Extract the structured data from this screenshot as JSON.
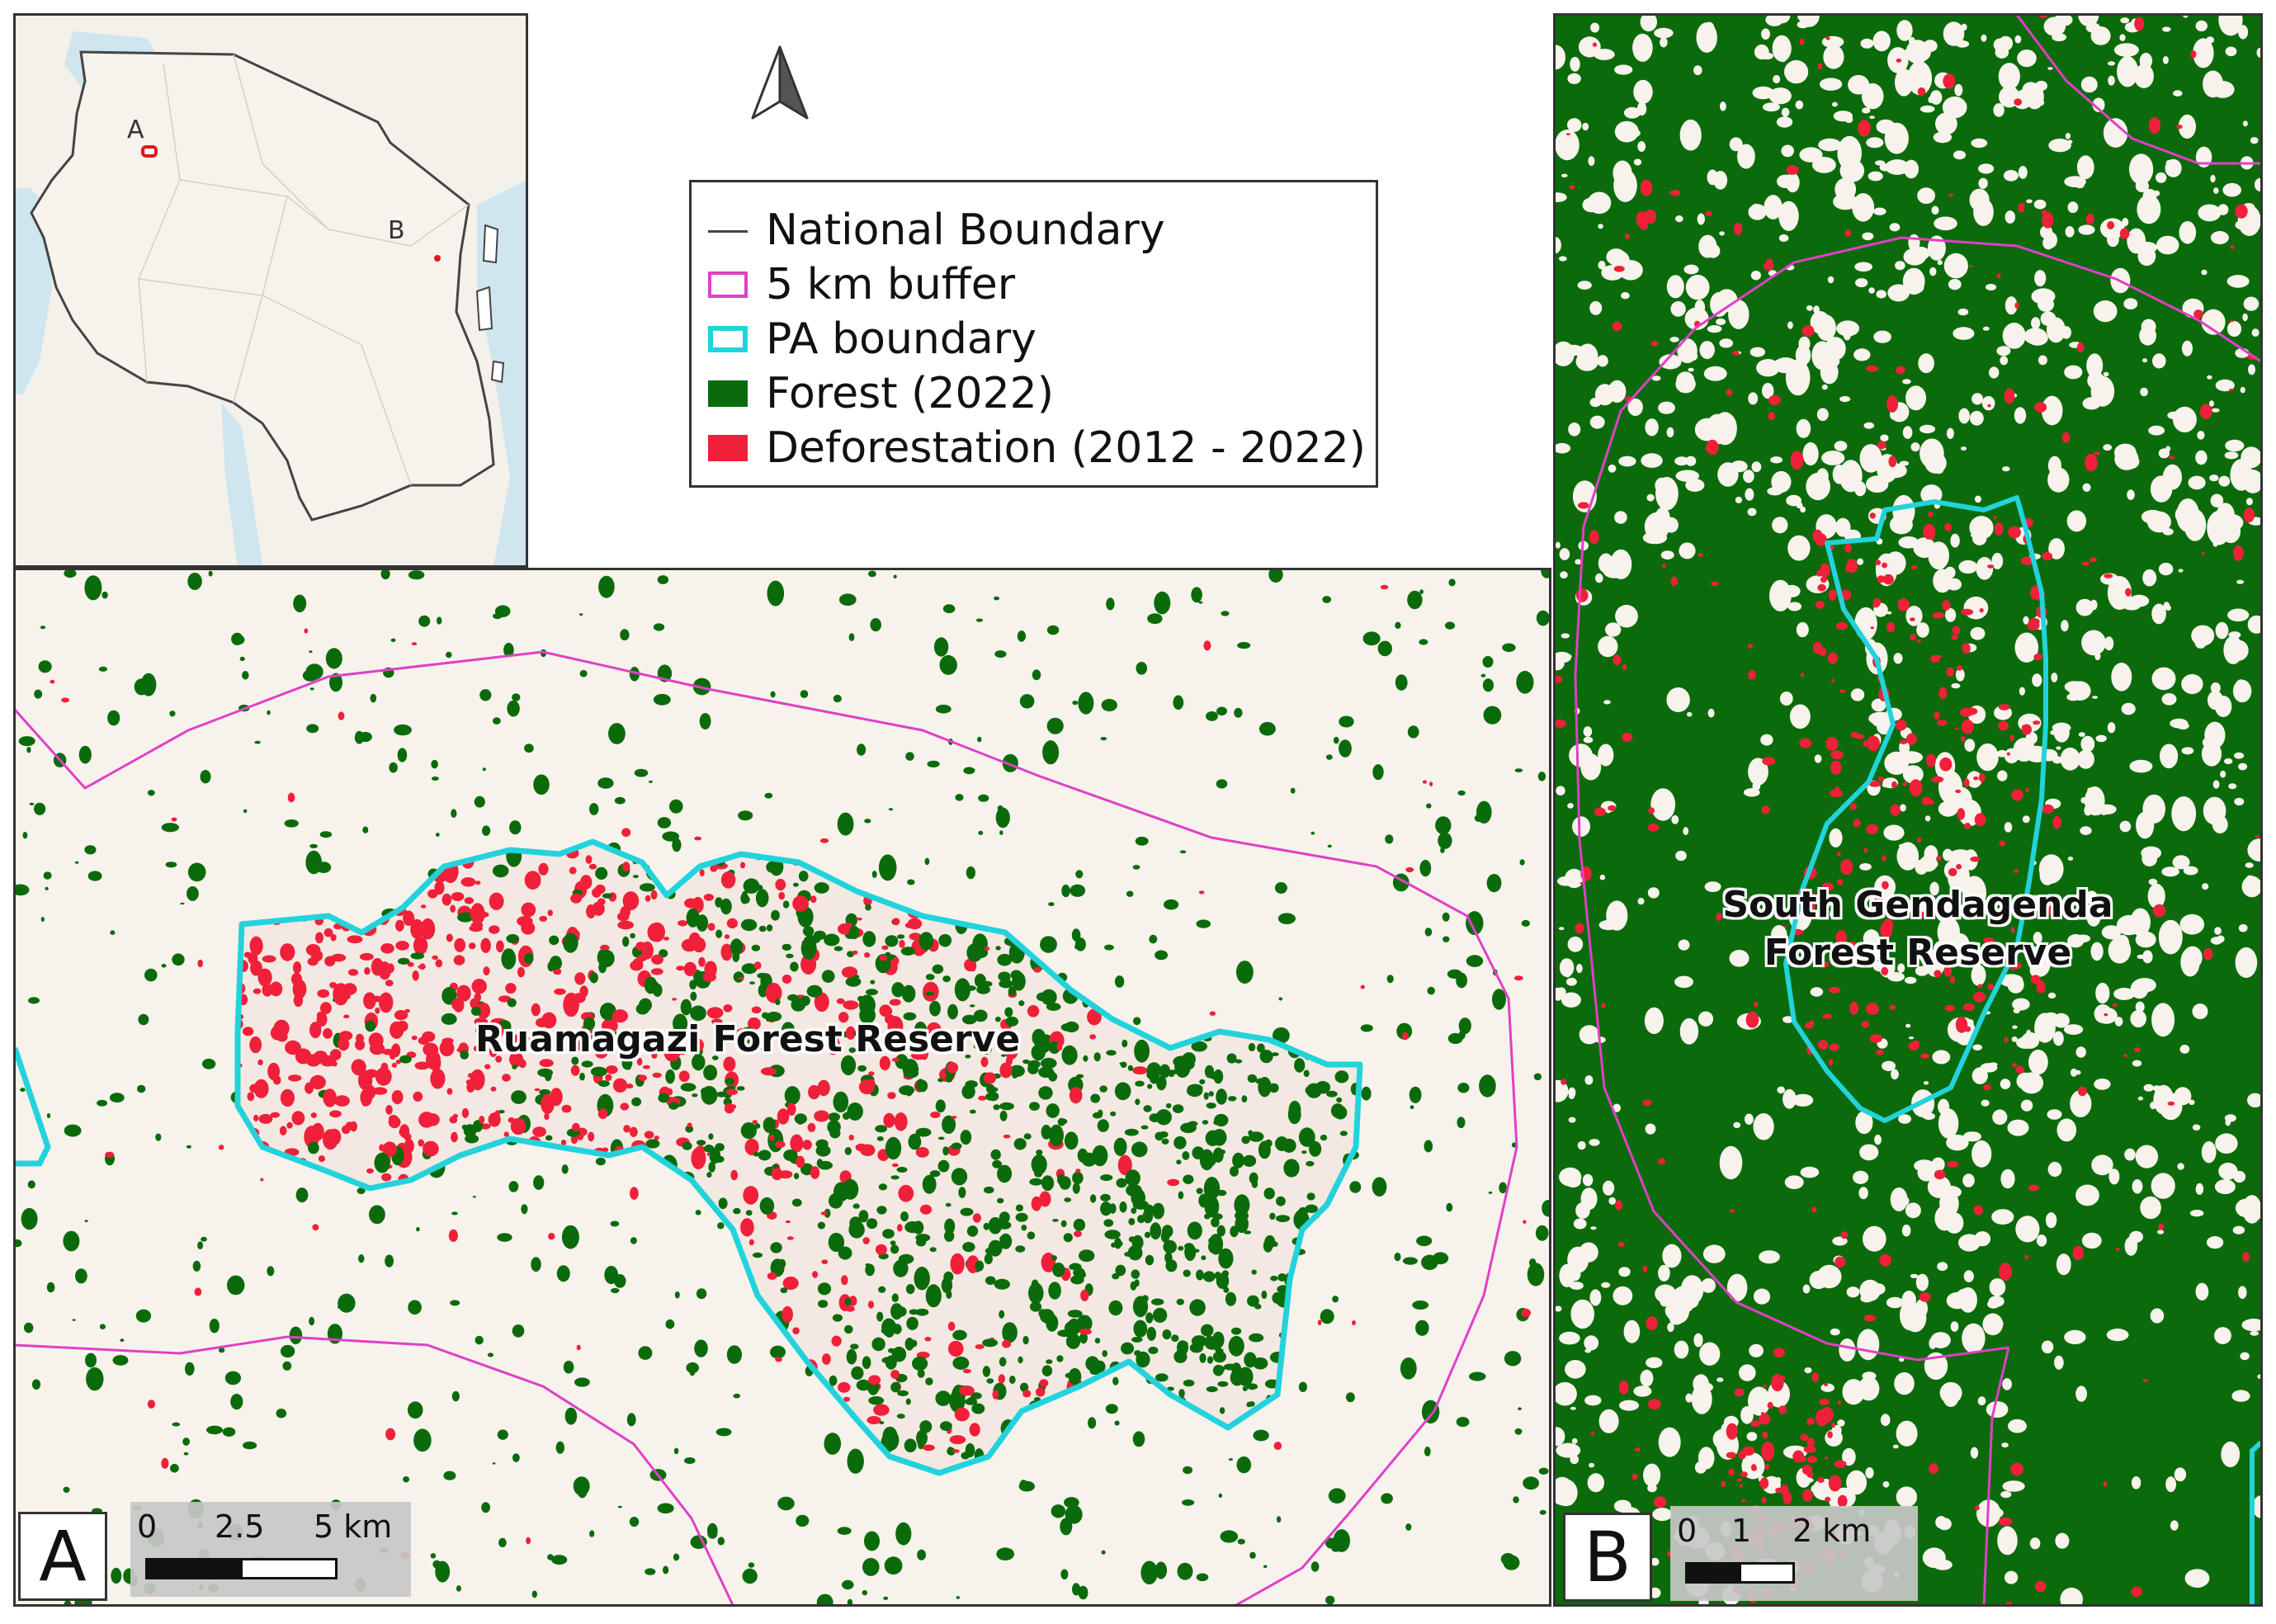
{
  "inset": {
    "label_a": "A",
    "label_b": "B"
  },
  "legend": {
    "items": [
      {
        "label": "National Boundary",
        "symbol": "line",
        "color": "#444444"
      },
      {
        "label": "5 km buffer",
        "symbol": "outline",
        "color": "#e040c8"
      },
      {
        "label": "PA boundary",
        "symbol": "outline",
        "color": "#22d3dc"
      },
      {
        "label": "Forest (2022)",
        "symbol": "fill",
        "color": "#0b6b0b"
      },
      {
        "label": "Deforestation (2012 - 2022)",
        "symbol": "fill",
        "color": "#f0203a"
      }
    ]
  },
  "panel_a": {
    "letter": "A",
    "reserve_name": "Ruamagazi Forest Reserve",
    "scale_ticks": [
      "0",
      "2.5",
      "5 km"
    ]
  },
  "panel_b": {
    "letter": "B",
    "reserve_name_line1": "South Gendagenda",
    "reserve_name_line2": "Forest Reserve",
    "scale_ticks": [
      "0",
      "1",
      "2 km"
    ]
  },
  "colors": {
    "forest": "#0b6b0b",
    "deforestation": "#f0203a",
    "buffer": "#e040c8",
    "pa_boundary": "#22d3dc",
    "national_boundary": "#444444",
    "water": "#cfe6ee",
    "land": "#f7f3ec"
  },
  "icons": [
    "north-arrow-icon"
  ]
}
